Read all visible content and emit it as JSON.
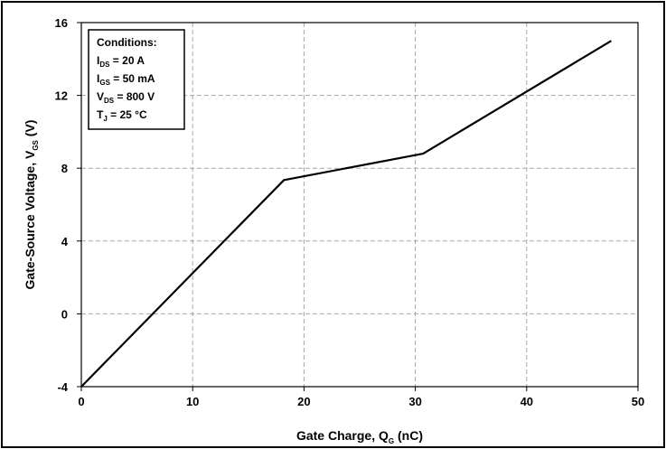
{
  "chart_data": {
    "type": "line",
    "title": "",
    "xlabel": {
      "main": "Gate Charge, Q",
      "sub": "G",
      "unit": " (nC)"
    },
    "ylabel": {
      "main": "Gate-Source Voltage, V",
      "sub": "GS",
      "unit": " (V)"
    },
    "xlim": [
      0,
      50
    ],
    "ylim": [
      -4,
      16
    ],
    "xticks": [
      0,
      10,
      20,
      30,
      40,
      50
    ],
    "yticks": [
      -4,
      0,
      4,
      8,
      12,
      16
    ],
    "grid": true,
    "series": [
      {
        "color": "#000000",
        "x": [
          0,
          18.2,
          30.7,
          47.6
        ],
        "y": [
          -4,
          7.35,
          8.8,
          15.0
        ]
      }
    ],
    "conditions": {
      "title": "Conditions:",
      "lines": [
        {
          "main": "I",
          "sub": "DS",
          "rest": " = 20 A"
        },
        {
          "main": "I",
          "sub": "GS",
          "rest": " = 50 mA"
        },
        {
          "main": "V",
          "sub": "DS",
          "rest": " = 800 V"
        },
        {
          "main": "T",
          "sub": "J",
          "rest": " = 25 °C"
        }
      ]
    }
  }
}
